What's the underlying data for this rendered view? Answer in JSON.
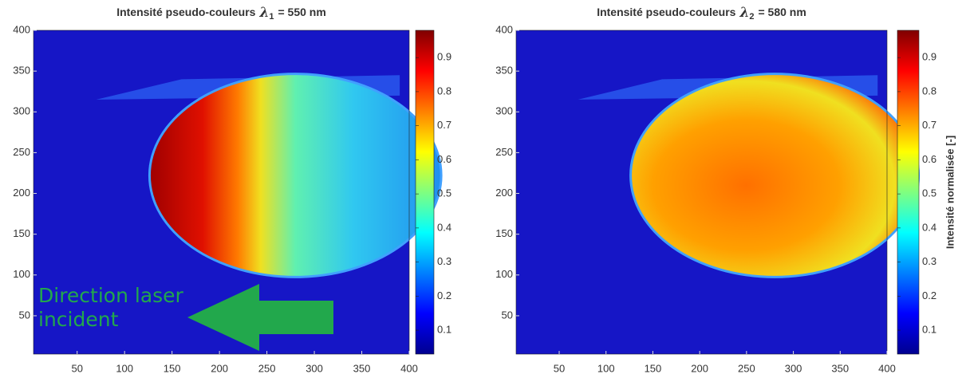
{
  "chart_data": [
    {
      "type": "heatmap",
      "title": {
        "text": "Intensité pseudo-couleurs",
        "symbol": "λ",
        "subscript": "1",
        "rest": "= 550 nm"
      },
      "xlim": [
        4,
        400
      ],
      "xticks": [
        50,
        100,
        150,
        200,
        250,
        300,
        350,
        400
      ],
      "ylim": [
        3,
        400
      ],
      "yticks": [
        50,
        100,
        150,
        200,
        250,
        300,
        350,
        400
      ],
      "clim": [
        0.03,
        0.98
      ],
      "cticks": [
        0.1,
        0.2,
        0.3,
        0.4,
        0.5,
        0.6,
        0.7,
        0.8,
        0.9
      ],
      "colormap": "jet",
      "annotation": "Direction laser incident"
    },
    {
      "type": "heatmap",
      "title": {
        "text": "Intensité pseudo-couleurs",
        "symbol": "λ",
        "subscript": "2",
        "rest": "= 580 nm"
      },
      "xlim": [
        4,
        400
      ],
      "xticks": [
        50,
        100,
        150,
        200,
        250,
        300,
        350,
        400
      ],
      "ylim": [
        3,
        400
      ],
      "yticks": [
        50,
        100,
        150,
        200,
        250,
        300,
        350,
        400
      ],
      "clim": [
        0.03,
        0.98
      ],
      "cticks": [
        0.1,
        0.2,
        0.3,
        0.4,
        0.5,
        0.6,
        0.7,
        0.8,
        0.9
      ],
      "colormap": "jet",
      "clabel": "Intensité normalisée [-]"
    }
  ]
}
